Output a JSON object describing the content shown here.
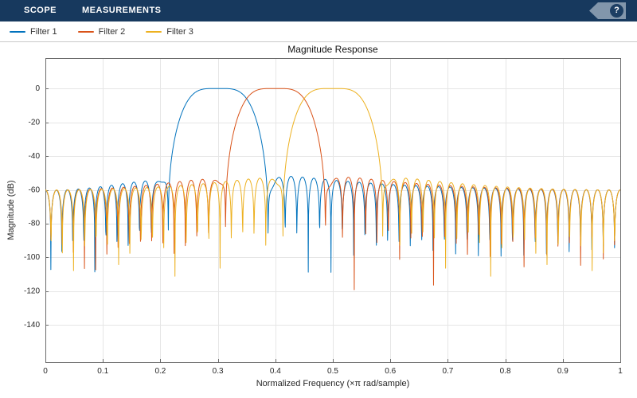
{
  "toolbar": {
    "tabs": [
      {
        "label": "SCOPE"
      },
      {
        "label": "MEASUREMENTS"
      }
    ],
    "help_label": "?"
  },
  "legend": {
    "items": [
      {
        "label": "Filter 1",
        "color": "#0072BD"
      },
      {
        "label": "Filter 2",
        "color": "#D95319"
      },
      {
        "label": "Filter 3",
        "color": "#EDB120"
      }
    ]
  },
  "chart_data": {
    "type": "line",
    "title": "Magnitude Response",
    "xlabel": "Normalized Frequency (×π rad/sample)",
    "ylabel": "Magnitude (dB)",
    "xlim": [
      0,
      1
    ],
    "ylim": [
      -162,
      18
    ],
    "xticks": [
      0,
      0.1,
      0.2,
      0.3,
      0.4,
      0.5,
      0.6,
      0.7,
      0.8,
      0.9,
      1
    ],
    "xtick_labels": [
      "0",
      "0.1",
      "0.2",
      "0.3",
      "0.4",
      "0.5",
      "0.6",
      "0.7",
      "0.8",
      "0.9",
      "1"
    ],
    "yticks": [
      0,
      -20,
      -40,
      -60,
      -80,
      -100,
      -120,
      -140
    ],
    "grid": true,
    "legend_position": "top-left",
    "samples_per_curve": 2001,
    "series": [
      {
        "name": "Filter 1",
        "color": "#0072BD",
        "passband": [
          0.25,
          0.35
        ],
        "peak_gain_db": 0,
        "stopband_sidelobe_db": -55,
        "synthesis": {
          "model": "FIR bandpass windowed-sinc",
          "window": "hamming",
          "filter_length": 101
        }
      },
      {
        "name": "Filter 2",
        "color": "#D95319",
        "passband": [
          0.35,
          0.45
        ],
        "peak_gain_db": 0,
        "stopband_sidelobe_db": -55,
        "synthesis": {
          "model": "FIR bandpass windowed-sinc",
          "window": "hamming",
          "filter_length": 101
        }
      },
      {
        "name": "Filter 3",
        "color": "#EDB120",
        "passband": [
          0.45,
          0.55
        ],
        "peak_gain_db": 0,
        "stopband_sidelobe_db": -55,
        "synthesis": {
          "model": "FIR bandpass windowed-sinc",
          "window": "hamming",
          "filter_length": 101
        }
      }
    ]
  },
  "colors": {
    "toolbar_bg": "#17395E",
    "help_tag": "#8296AB",
    "help_circle": "#1C3E63",
    "plot_bg": "#ffffff",
    "grid": "#e6e6e6",
    "axis": "#6b6b6b",
    "tick_label": "#262626"
  }
}
